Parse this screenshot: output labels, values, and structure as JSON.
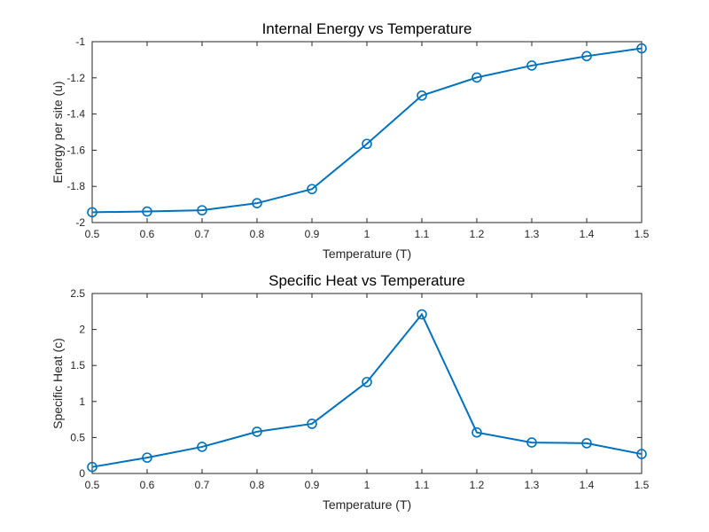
{
  "chart_data": [
    {
      "type": "line",
      "title": "Internal Energy vs Temperature",
      "xlabel": "Temperature (T)",
      "ylabel": "Energy per site (u)",
      "xlim": [
        0.5,
        1.5
      ],
      "ylim": [
        -2,
        -1
      ],
      "xticks": [
        0.5,
        0.6,
        0.7,
        0.8,
        0.9,
        1,
        1.1,
        1.2,
        1.3,
        1.4,
        1.5
      ],
      "yticks": [
        -2,
        -1.8,
        -1.6,
        -1.4,
        -1.2,
        -1
      ],
      "xtick_labels": [
        "0.5",
        "0.6",
        "0.7",
        "0.8",
        "0.9",
        "1",
        "1.1",
        "1.2",
        "1.3",
        "1.4",
        "1.5"
      ],
      "ytick_labels": [
        "-2",
        "-1.8",
        "-1.6",
        "-1.4",
        "-1.2",
        "-1"
      ],
      "grid": true,
      "marker": "circle",
      "color": "#0072BD",
      "x": [
        0.5,
        0.6,
        0.7,
        0.8,
        0.9,
        1.0,
        1.1,
        1.2,
        1.3,
        1.4,
        1.5
      ],
      "y": [
        -1.943,
        -1.939,
        -1.932,
        -1.893,
        -1.815,
        -1.565,
        -1.298,
        -1.198,
        -1.132,
        -1.08,
        -1.037
      ]
    },
    {
      "type": "line",
      "title": "Specific Heat vs Temperature",
      "xlabel": "Temperature (T)",
      "ylabel": "Specific Heat (c)",
      "xlim": [
        0.5,
        1.5
      ],
      "ylim": [
        0,
        2.5
      ],
      "xticks": [
        0.5,
        0.6,
        0.7,
        0.8,
        0.9,
        1,
        1.1,
        1.2,
        1.3,
        1.4,
        1.5
      ],
      "yticks": [
        0,
        0.5,
        1,
        1.5,
        2,
        2.5
      ],
      "xtick_labels": [
        "0.5",
        "0.6",
        "0.7",
        "0.8",
        "0.9",
        "1",
        "1.1",
        "1.2",
        "1.3",
        "1.4",
        "1.5"
      ],
      "ytick_labels": [
        "0",
        "0.5",
        "1",
        "1.5",
        "2",
        "2.5"
      ],
      "grid": true,
      "marker": "circle",
      "color": "#0072BD",
      "x": [
        0.5,
        0.6,
        0.7,
        0.8,
        0.9,
        1.0,
        1.1,
        1.2,
        1.3,
        1.4,
        1.5
      ],
      "y": [
        0.09,
        0.22,
        0.37,
        0.58,
        0.69,
        1.27,
        2.21,
        0.57,
        0.43,
        0.42,
        0.27
      ]
    }
  ]
}
